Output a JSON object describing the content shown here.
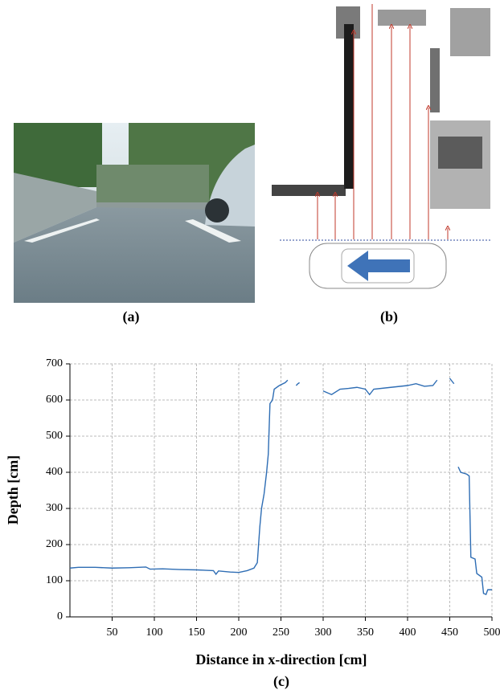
{
  "panels": {
    "a": {
      "label": "(a)"
    },
    "b": {
      "label": "(b)"
    }
  },
  "chart_data": {
    "type": "line",
    "panel_label": "(c)",
    "x_label": "Distance in x-direction [cm]",
    "y_label": "Depth [cm]",
    "x": [
      0,
      10,
      30,
      50,
      70,
      90,
      95,
      110,
      130,
      150,
      170,
      173,
      176,
      190,
      200,
      210,
      218,
      222,
      225,
      227,
      230,
      233,
      235,
      237,
      240,
      242,
      248,
      255,
      258,
      262,
      268,
      270,
      272,
      285,
      300,
      305,
      310,
      320,
      330,
      340,
      350,
      355,
      360,
      380,
      400,
      410,
      420,
      430,
      435,
      443,
      450,
      455,
      458,
      460,
      463,
      470,
      473,
      475,
      480,
      482,
      488,
      490,
      493,
      495,
      500
    ],
    "series": [
      {
        "color": "#2e6db4",
        "values": [
          135,
          137,
          137,
          135,
          136,
          138,
          132,
          133,
          131,
          130,
          128,
          118,
          127,
          124,
          123,
          128,
          135,
          150,
          250,
          300,
          340,
          400,
          450,
          590,
          600,
          630,
          640,
          648,
          655,
          null,
          640,
          645,
          648,
          null,
          625,
          620,
          615,
          630,
          632,
          635,
          630,
          615,
          630,
          635,
          640,
          645,
          638,
          640,
          655,
          null,
          660,
          645,
          null,
          415,
          400,
          395,
          390,
          165,
          160,
          120,
          110,
          65,
          62,
          75,
          75
        ]
      }
    ],
    "xlim": [
      0,
      500
    ],
    "xticks": [
      50,
      100,
      150,
      200,
      250,
      300,
      350,
      400,
      450,
      500
    ],
    "ylim": [
      0,
      700
    ],
    "yticks": [
      0,
      100,
      200,
      300,
      400,
      500,
      600,
      700
    ],
    "grid": true
  }
}
